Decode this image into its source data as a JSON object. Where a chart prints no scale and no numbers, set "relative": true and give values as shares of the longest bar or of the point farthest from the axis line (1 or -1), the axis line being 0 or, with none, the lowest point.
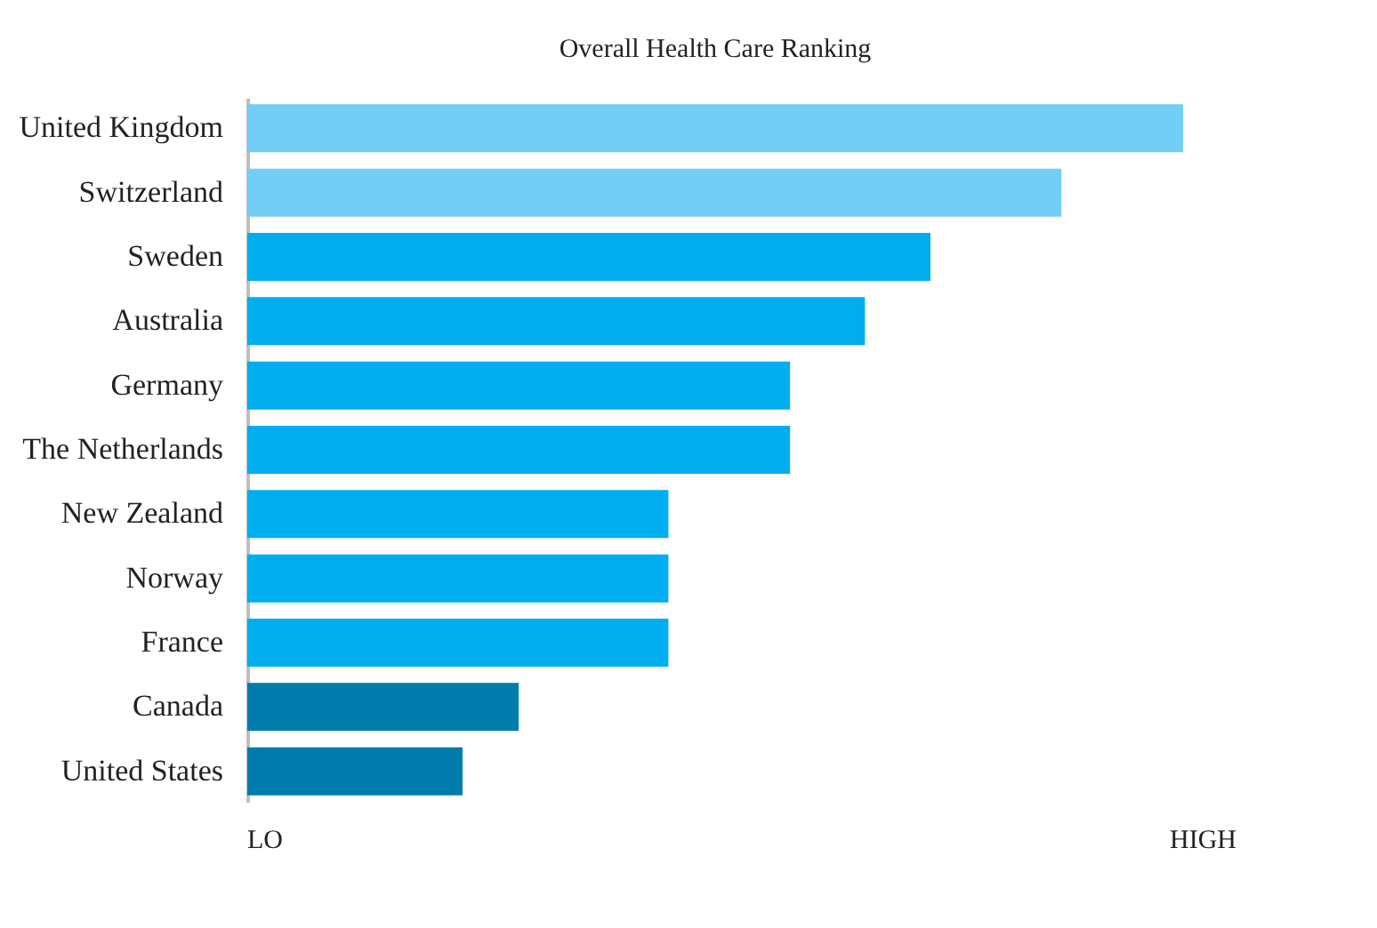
{
  "chart_data": {
    "type": "bar",
    "orientation": "horizontal",
    "relative": true,
    "title": "Overall Health Care Ranking",
    "categories": [
      "United Kingdom",
      "Switzerland",
      "Sweden",
      "Australia",
      "Germany",
      "The Netherlands",
      "New Zealand",
      "Norway",
      "France",
      "Canada",
      "United States"
    ],
    "values": [
      1,
      0.87,
      0.73,
      0.66,
      0.58,
      0.58,
      0.45,
      0.45,
      0.45,
      0.29,
      0.23
    ],
    "colors": [
      "#72cef4",
      "#72cef4",
      "#00aeef",
      "#00aeef",
      "#00aeef",
      "#00aeef",
      "#00aeef",
      "#00aeef",
      "#00aeef",
      "#007dad",
      "#007dad"
    ],
    "annotations": [
      "LO",
      "HIGH"
    ],
    "grid": false
  }
}
